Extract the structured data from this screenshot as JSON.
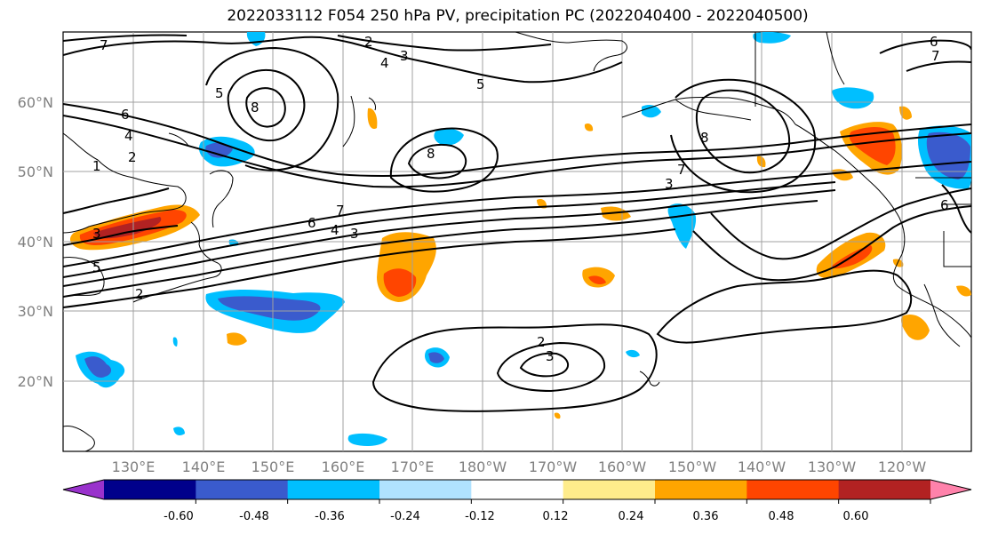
{
  "title": "2022033112 F054 250 hPa PV, precipitation PC (2022040400 - 2022040500)",
  "lat_labels": [
    "60°N",
    "50°N",
    "40°N",
    "30°N",
    "20°N"
  ],
  "lon_labels": [
    "130°E",
    "140°E",
    "150°E",
    "160°E",
    "170°E",
    "180°W",
    "170°W",
    "160°W",
    "150°W",
    "140°W",
    "130°W",
    "120°W"
  ],
  "colorbar": {
    "colors": [
      "#9932cc",
      "#00008b",
      "#3a5bcd",
      "#00bfff",
      "#b0e2ff",
      "#ffffff",
      "#ffec8b",
      "#ffa500",
      "#ff4500",
      "#b22222",
      "#ff82ab"
    ],
    "tick_labels": [
      "-0.60",
      "-0.48",
      "-0.36",
      "-0.24",
      "-0.12",
      "0.12",
      "0.24",
      "0.36",
      "0.48",
      "0.60"
    ]
  },
  "contour_labels": [
    "7",
    "2",
    "3",
    "4",
    "5",
    "5",
    "6",
    "6",
    "4",
    "2",
    "1",
    "8",
    "8",
    "7",
    "3",
    "7",
    "6",
    "4",
    "3",
    "8",
    "2",
    "3",
    "2",
    "5",
    "7",
    "6",
    "3"
  ]
}
